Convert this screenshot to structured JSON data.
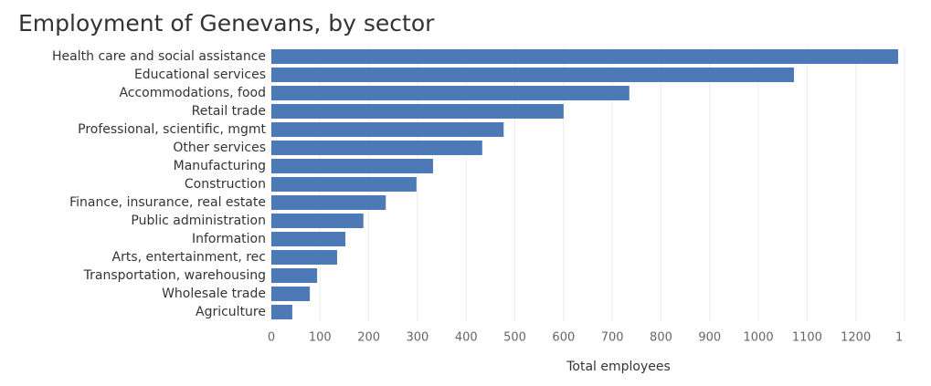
{
  "chart_data": {
    "type": "bar",
    "orientation": "horizontal",
    "title": "Employment of Genevans, by sector",
    "x_label": "Total employees",
    "categories": [
      "Health care and social assistance",
      "Educational services",
      "Accommodations, food",
      "Retail trade",
      "Professional, scientific, mgmt",
      "Other services",
      "Manufacturing",
      "Construction",
      "Finance, insurance, real estate",
      "Public administration",
      "Information",
      "Arts, entertainment, rec",
      "Transportation, warehousing",
      "Wholesale trade",
      "Agriculture"
    ],
    "values": [
      1287,
      1073,
      735,
      600,
      477,
      433,
      332,
      298,
      235,
      189,
      152,
      135,
      94,
      79,
      43
    ],
    "color": "#4e79b7",
    "xlim": [
      0,
      1300
    ],
    "xticks": [
      0,
      100,
      200,
      300,
      400,
      500,
      600,
      700,
      800,
      900,
      1000,
      1100,
      1200,
      {
        "value": 1300,
        "label": "1"
      }
    ],
    "grid": true
  }
}
